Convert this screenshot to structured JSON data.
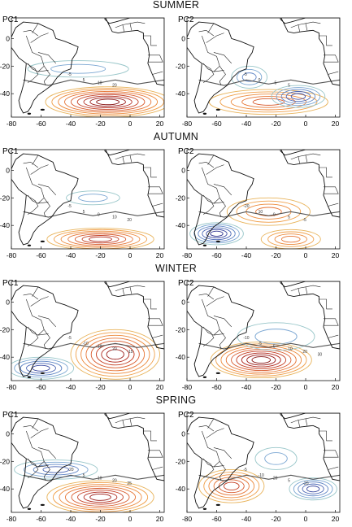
{
  "seasons": [
    "SUMMER",
    "AUTUMN",
    "WINTER",
    "SPRING"
  ],
  "panel_labels": [
    "PC1",
    "PC2"
  ],
  "axes": {
    "x_ticks": [
      "-80",
      "-60",
      "-40",
      "-20",
      "0",
      "20"
    ],
    "y_ticks": [
      "0",
      "-20",
      "-40"
    ]
  },
  "panels": [
    {
      "season": "SUMMER",
      "label": "PC1",
      "labels": [
        "-5",
        "5",
        "10",
        "20"
      ]
    },
    {
      "season": "SUMMER",
      "label": "PC2",
      "labels": [
        "-5",
        "0",
        "-5",
        "5"
      ]
    },
    {
      "season": "AUTUMN",
      "label": "PC1",
      "labels": [
        "-5",
        "5",
        "0",
        "10",
        "20"
      ]
    },
    {
      "season": "AUTUMN",
      "label": "PC2",
      "labels": [
        "-20",
        "10",
        "0",
        "5",
        "-5"
      ]
    },
    {
      "season": "WINTER",
      "label": "PC1",
      "labels": [
        "-5",
        "-10",
        "10",
        "20",
        "-15"
      ]
    },
    {
      "season": "WINTER",
      "label": "PC2",
      "labels": [
        "-10",
        "-5",
        "5",
        "10",
        "20",
        "30"
      ]
    },
    {
      "season": "SPRING",
      "label": "PC1",
      "labels": [
        "-20",
        "5",
        "10",
        "20",
        "25"
      ]
    },
    {
      "season": "SPRING",
      "label": "PC2",
      "labels": [
        "-5",
        "-10",
        "20",
        "5",
        "-20"
      ]
    }
  ]
}
